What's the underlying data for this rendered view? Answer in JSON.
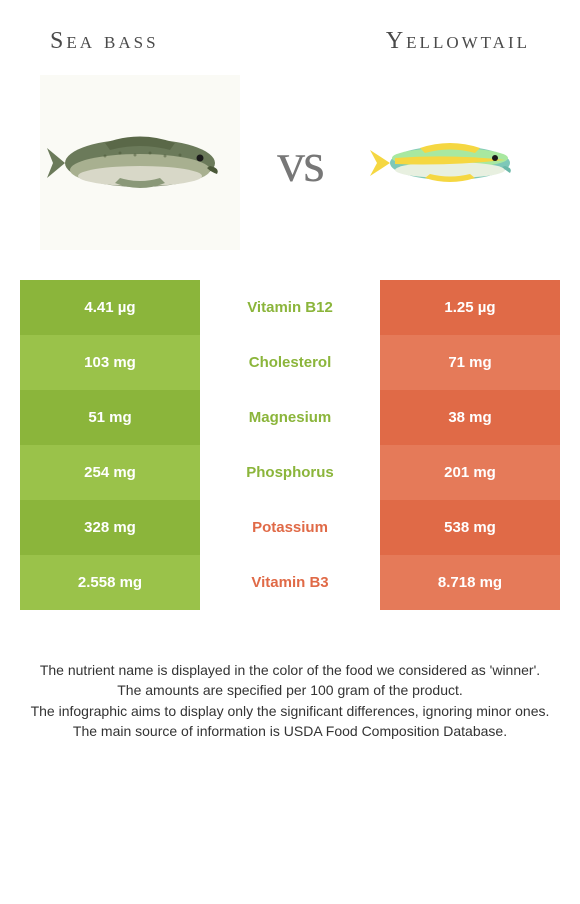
{
  "header": {
    "left_title": "Sea bass",
    "right_title": "Yellowtail",
    "vs": "vs"
  },
  "colors": {
    "left_primary": "#8bb53b",
    "left_alt": "#9ac24a",
    "right_primary": "#e06a47",
    "right_alt": "#e57a59",
    "seabass_body": "#6b7a5a",
    "seabass_belly": "#d8d8c8",
    "yellowtail_body": "#7ec8b8",
    "yellowtail_yellow": "#f5d742",
    "fish_bg": "#fafaf5"
  },
  "rows": [
    {
      "left": "4.41 µg",
      "label": "Vitamin B12",
      "right": "1.25 µg",
      "winner": "left"
    },
    {
      "left": "103 mg",
      "label": "Cholesterol",
      "right": "71 mg",
      "winner": "left"
    },
    {
      "left": "51 mg",
      "label": "Magnesium",
      "right": "38 mg",
      "winner": "left"
    },
    {
      "left": "254 mg",
      "label": "Phosphorus",
      "right": "201 mg",
      "winner": "left"
    },
    {
      "left": "328 mg",
      "label": "Potassium",
      "right": "538 mg",
      "winner": "right"
    },
    {
      "left": "2.558 mg",
      "label": "Vitamin B3",
      "right": "8.718 mg",
      "winner": "right"
    }
  ],
  "footnotes": [
    "The nutrient name is displayed in the color of the food we considered as 'winner'.",
    "The amounts are specified per 100 gram of the product.",
    "The infographic aims to display only the significant differences, ignoring minor ones.",
    "The main source of information is USDA Food Composition Database."
  ]
}
